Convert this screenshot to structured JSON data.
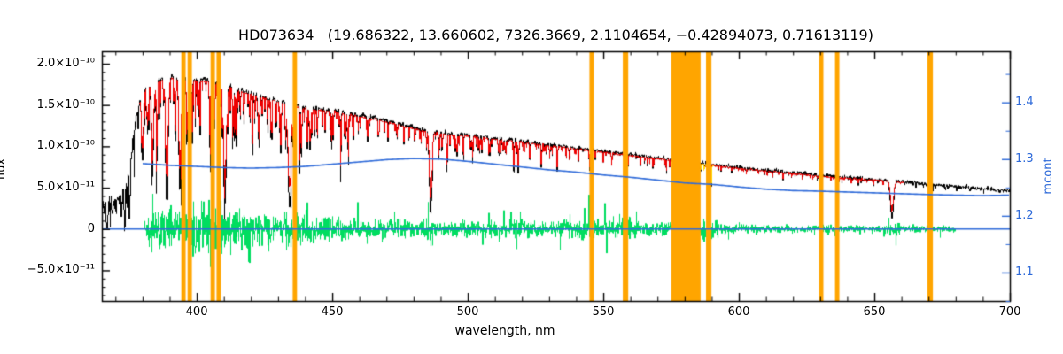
{
  "chart_data": {
    "type": "line",
    "title": "HD073634   (19.686322, 13.660602, 7326.3669, 2.1104654, −0.42894073, 0.71613119)",
    "xlabel": "wavelength, nm",
    "ylabel_left": "flux",
    "ylabel_right": "mcont",
    "xlim": [
      365,
      700
    ],
    "ylim_left_1e10": [
      -0.87,
      2.15
    ],
    "ylim_right": [
      1.05,
      1.49
    ],
    "x_ticks": [
      400,
      450,
      500,
      550,
      600,
      650,
      700
    ],
    "x_minor_step_nm": 10,
    "y_ticks_left": [
      {
        "value": 2.0,
        "label": "2.0×10⁻¹⁰"
      },
      {
        "value": 1.5,
        "label": "1.5×10⁻¹⁰"
      },
      {
        "value": 1.0,
        "label": "1.0×10⁻¹⁰"
      },
      {
        "value": 0.5,
        "label": "5.0×10⁻¹¹"
      },
      {
        "value": 0.0,
        "label": "0"
      },
      {
        "value": -0.5,
        "label": "−5.0×10⁻¹¹"
      }
    ],
    "y_ticks_right": [
      {
        "value": 1.4,
        "label": "1.4"
      },
      {
        "value": 1.3,
        "label": "1.3"
      },
      {
        "value": 1.2,
        "label": "1.2"
      },
      {
        "value": 1.1,
        "label": "1.1"
      }
    ],
    "grid": false,
    "legend": "none",
    "colors": {
      "observed": "#000000",
      "model": "#EE0000",
      "masked_band": "#FFA500",
      "masked_trace": "#FFDD00",
      "mcont": "#2E6AD9",
      "zero_line": "#2E6AD9",
      "residual": "#00DD60",
      "axis": "#000000",
      "background": "#FFFFFF"
    },
    "masked_bands_nm": [
      [
        394.3,
        395.9
      ],
      [
        396.6,
        398.2
      ],
      [
        405.1,
        406.7
      ],
      [
        407.3,
        408.9
      ],
      [
        435.4,
        437.0
      ],
      [
        544.9,
        546.5
      ],
      [
        557.2,
        559.2
      ],
      [
        575.1,
        585.9
      ],
      [
        587.9,
        589.9
      ],
      [
        629.6,
        631.2
      ],
      [
        635.5,
        637.1
      ],
      [
        669.6,
        671.6
      ]
    ],
    "series": {
      "observed_continuum_1e10": [
        [
          365,
          0.33
        ],
        [
          368,
          0.36
        ],
        [
          371,
          0.4
        ],
        [
          373,
          0.44
        ],
        [
          375,
          0.75
        ],
        [
          377,
          1.25
        ],
        [
          379,
          1.6
        ],
        [
          381,
          1.72
        ],
        [
          384,
          1.79
        ],
        [
          387,
          1.83
        ],
        [
          390,
          1.85
        ],
        [
          394,
          1.84
        ],
        [
          398,
          1.82
        ],
        [
          402,
          1.82
        ],
        [
          406,
          1.8
        ],
        [
          410,
          1.77
        ],
        [
          414,
          1.72
        ],
        [
          418,
          1.67
        ],
        [
          422,
          1.63
        ],
        [
          426,
          1.59
        ],
        [
          430,
          1.56
        ],
        [
          434,
          1.52
        ],
        [
          438,
          1.49
        ],
        [
          442,
          1.47
        ],
        [
          446,
          1.45
        ],
        [
          450,
          1.44
        ],
        [
          455,
          1.41
        ],
        [
          460,
          1.38
        ],
        [
          465,
          1.35
        ],
        [
          470,
          1.31
        ],
        [
          475,
          1.27
        ],
        [
          480,
          1.23
        ],
        [
          486,
          1.19
        ],
        [
          492,
          1.16
        ],
        [
          500,
          1.14
        ],
        [
          508,
          1.11
        ],
        [
          516,
          1.08
        ],
        [
          524,
          1.045
        ],
        [
          532,
          1.015
        ],
        [
          540,
          0.98
        ],
        [
          548,
          0.95
        ],
        [
          556,
          0.915
        ],
        [
          564,
          0.885
        ],
        [
          572,
          0.855
        ],
        [
          580,
          0.825
        ],
        [
          588,
          0.79
        ],
        [
          596,
          0.758
        ],
        [
          604,
          0.73
        ],
        [
          612,
          0.705
        ],
        [
          620,
          0.68
        ],
        [
          628,
          0.655
        ],
        [
          636,
          0.632
        ],
        [
          644,
          0.612
        ],
        [
          652,
          0.595
        ],
        [
          660,
          0.572
        ],
        [
          668,
          0.548
        ],
        [
          676,
          0.525
        ],
        [
          684,
          0.503
        ],
        [
          692,
          0.482
        ],
        [
          700,
          0.462
        ]
      ],
      "model_continuum_scale": 0.985,
      "model_line_depth_scale": 0.8,
      "model_range_nm": [
        378.5,
        660.5
      ],
      "masked_trace_range_nm": [
        575.1,
        590.8
      ],
      "mcont_curve": [
        [
          380,
          1.292
        ],
        [
          390,
          1.289
        ],
        [
          400,
          1.287
        ],
        [
          410,
          1.285
        ],
        [
          420,
          1.284
        ],
        [
          430,
          1.285
        ],
        [
          440,
          1.287
        ],
        [
          450,
          1.291
        ],
        [
          460,
          1.295
        ],
        [
          470,
          1.299
        ],
        [
          480,
          1.301
        ],
        [
          490,
          1.3
        ],
        [
          500,
          1.296
        ],
        [
          510,
          1.291
        ],
        [
          520,
          1.286
        ],
        [
          530,
          1.281
        ],
        [
          540,
          1.277
        ],
        [
          550,
          1.272
        ],
        [
          560,
          1.268
        ],
        [
          570,
          1.263
        ],
        [
          580,
          1.258
        ],
        [
          590,
          1.2555
        ],
        [
          600,
          1.251
        ],
        [
          610,
          1.247
        ],
        [
          620,
          1.2445
        ],
        [
          630,
          1.2435
        ],
        [
          640,
          1.242
        ],
        [
          650,
          1.2405
        ],
        [
          660,
          1.239
        ],
        [
          670,
          1.2375
        ],
        [
          680,
          1.2365
        ],
        [
          690,
          1.2355
        ],
        [
          700,
          1.2365
        ]
      ],
      "residual_amplitude_1e10": [
        [
          380,
          0.02
        ],
        [
          382,
          0.09
        ],
        [
          386,
          0.12
        ],
        [
          390,
          0.13
        ],
        [
          394,
          0.14
        ],
        [
          398,
          0.15
        ],
        [
          403,
          0.16
        ],
        [
          408,
          0.16
        ],
        [
          412,
          0.14
        ],
        [
          416,
          0.12
        ],
        [
          420,
          0.1
        ],
        [
          425,
          0.09
        ],
        [
          430,
          0.09
        ],
        [
          435,
          0.1
        ],
        [
          440,
          0.085
        ],
        [
          445,
          0.075
        ],
        [
          450,
          0.07
        ],
        [
          458,
          0.062
        ],
        [
          466,
          0.058
        ],
        [
          474,
          0.053
        ],
        [
          482,
          0.05
        ],
        [
          486,
          0.065
        ],
        [
          490,
          0.05
        ],
        [
          498,
          0.048
        ],
        [
          506,
          0.05
        ],
        [
          514,
          0.052
        ],
        [
          518,
          0.058
        ],
        [
          524,
          0.048
        ],
        [
          532,
          0.045
        ],
        [
          540,
          0.058
        ],
        [
          546,
          0.085
        ],
        [
          552,
          0.05
        ],
        [
          559,
          0.085
        ],
        [
          564,
          0.042
        ],
        [
          570,
          0.038
        ],
        [
          576,
          0.045
        ],
        [
          582,
          0.055
        ],
        [
          589,
          0.075
        ],
        [
          594,
          0.032
        ],
        [
          600,
          0.026
        ],
        [
          608,
          0.023
        ],
        [
          616,
          0.021
        ],
        [
          624,
          0.02
        ],
        [
          630,
          0.028
        ],
        [
          638,
          0.02
        ],
        [
          646,
          0.019
        ],
        [
          652,
          0.02
        ],
        [
          656,
          0.045
        ],
        [
          662,
          0.02
        ],
        [
          670,
          0.024
        ],
        [
          676,
          0.02
        ],
        [
          680,
          0.02
        ]
      ],
      "residual_range_nm": [
        380.5,
        680
      ],
      "zero_line_value": 0
    },
    "absorption_lines": {
      "strong_lines_nm_depth_sigma": [
        [
          379.8,
          0.5,
          0.35
        ],
        [
          383.5,
          0.55,
          0.4
        ],
        [
          388.9,
          0.58,
          0.45
        ],
        [
          393.4,
          0.62,
          0.3
        ],
        [
          396.9,
          0.65,
          0.45
        ],
        [
          410.2,
          0.82,
          0.5
        ],
        [
          434.0,
          0.82,
          0.5
        ],
        [
          486.1,
          0.85,
          0.45
        ],
        [
          656.3,
          0.76,
          0.55
        ],
        [
          381.6,
          0.35,
          0.18
        ],
        [
          385.0,
          0.32,
          0.18
        ],
        [
          392.0,
          0.28,
          0.15
        ],
        [
          400.5,
          0.25,
          0.15
        ],
        [
          404.6,
          0.38,
          0.18
        ],
        [
          406.4,
          0.32,
          0.16
        ],
        [
          407.8,
          0.3,
          0.15
        ],
        [
          413.2,
          0.3,
          0.16
        ],
        [
          414.4,
          0.32,
          0.16
        ],
        [
          417.2,
          0.26,
          0.14
        ],
        [
          420.3,
          0.3,
          0.14
        ],
        [
          422.7,
          0.36,
          0.16
        ],
        [
          426.0,
          0.26,
          0.14
        ],
        [
          427.2,
          0.3,
          0.14
        ],
        [
          430.8,
          0.42,
          0.2
        ],
        [
          432.6,
          0.36,
          0.16
        ],
        [
          438.4,
          0.42,
          0.18
        ],
        [
          440.5,
          0.3,
          0.14
        ],
        [
          441.6,
          0.34,
          0.16
        ],
        [
          444.3,
          0.26,
          0.14
        ],
        [
          447.2,
          0.22,
          0.13
        ],
        [
          449.5,
          0.2,
          0.12
        ],
        [
          452.9,
          0.25,
          0.13
        ],
        [
          455.4,
          0.2,
          0.12
        ],
        [
          459.4,
          0.18,
          0.12
        ],
        [
          462.9,
          0.2,
          0.12
        ],
        [
          466.8,
          0.18,
          0.12
        ],
        [
          470.4,
          0.2,
          0.12
        ],
        [
          473.7,
          0.16,
          0.11
        ],
        [
          476.3,
          0.18,
          0.11
        ],
        [
          480.1,
          0.16,
          0.1
        ],
        [
          489.2,
          0.28,
          0.13
        ],
        [
          492.1,
          0.3,
          0.14
        ],
        [
          495.8,
          0.24,
          0.12
        ],
        [
          498.2,
          0.22,
          0.12
        ],
        [
          501.6,
          0.28,
          0.13
        ],
        [
          504.2,
          0.2,
          0.11
        ],
        [
          508.0,
          0.22,
          0.12
        ],
        [
          511.0,
          0.18,
          0.1
        ],
        [
          513.9,
          0.2,
          0.11
        ],
        [
          516.8,
          0.36,
          0.16
        ],
        [
          518.4,
          0.36,
          0.16
        ],
        [
          522.7,
          0.24,
          0.12
        ],
        [
          526.9,
          0.3,
          0.13
        ],
        [
          530.0,
          0.2,
          0.11
        ],
        [
          532.8,
          0.24,
          0.12
        ],
        [
          537.2,
          0.2,
          0.11
        ],
        [
          540.6,
          0.18,
          0.1
        ],
        [
          544.7,
          0.2,
          0.11
        ],
        [
          549.8,
          0.16,
          0.1
        ],
        [
          552.9,
          0.2,
          0.11
        ],
        [
          558.9,
          0.18,
          0.1
        ],
        [
          563.5,
          0.13,
          0.09
        ],
        [
          568.0,
          0.13,
          0.09
        ],
        [
          573.0,
          0.13,
          0.09
        ],
        [
          578.2,
          0.12,
          0.09
        ],
        [
          582.2,
          0.12,
          0.09
        ],
        [
          585.8,
          0.12,
          0.09
        ],
        [
          589.0,
          0.42,
          0.16
        ],
        [
          589.6,
          0.36,
          0.15
        ],
        [
          593.2,
          0.1,
          0.08
        ],
        [
          597.1,
          0.1,
          0.08
        ],
        [
          602.6,
          0.1,
          0.08
        ],
        [
          607.1,
          0.1,
          0.08
        ],
        [
          610.3,
          0.12,
          0.08
        ],
        [
          612.3,
          0.12,
          0.08
        ],
        [
          616.2,
          0.12,
          0.08
        ],
        [
          619.3,
          0.09,
          0.08
        ],
        [
          623.2,
          0.1,
          0.08
        ],
        [
          627.1,
          0.09,
          0.08
        ],
        [
          630.3,
          0.1,
          0.08
        ],
        [
          633.8,
          0.08,
          0.08
        ],
        [
          637.9,
          0.08,
          0.08
        ],
        [
          641.3,
          0.1,
          0.08
        ],
        [
          643.9,
          0.12,
          0.08
        ],
        [
          649.6,
          0.12,
          0.08
        ],
        [
          653.1,
          0.1,
          0.08
        ],
        [
          661.1,
          0.08,
          0.08
        ],
        [
          665.1,
          0.08,
          0.08
        ],
        [
          667.9,
          0.1,
          0.08
        ],
        [
          672.1,
          0.08,
          0.08
        ],
        [
          676.1,
          0.08,
          0.08
        ],
        [
          680.6,
          0.08,
          0.08
        ],
        [
          685.1,
          0.07,
          0.08
        ],
        [
          690.1,
          0.07,
          0.08
        ],
        [
          695.1,
          0.07,
          0.08
        ]
      ],
      "line_forest": [
        {
          "range": [
            365,
            377
          ],
          "per_nm": 3.0,
          "depth": [
            0.25,
            0.6
          ],
          "sigma": [
            0.05,
            0.12
          ]
        },
        {
          "range": [
            377,
            400
          ],
          "per_nm": 2.0,
          "depth": [
            0.08,
            0.35
          ],
          "sigma": [
            0.04,
            0.1
          ]
        },
        {
          "range": [
            400,
            460
          ],
          "per_nm": 1.6,
          "depth": [
            0.06,
            0.3
          ],
          "sigma": [
            0.04,
            0.1
          ]
        },
        {
          "range": [
            460,
            520
          ],
          "per_nm": 1.0,
          "depth": [
            0.04,
            0.2
          ],
          "sigma": [
            0.04,
            0.09
          ]
        },
        {
          "range": [
            520,
            580
          ],
          "per_nm": 0.7,
          "depth": [
            0.03,
            0.15
          ],
          "sigma": [
            0.04,
            0.08
          ]
        },
        {
          "range": [
            580,
            700
          ],
          "per_nm": 0.45,
          "depth": [
            0.02,
            0.1
          ],
          "sigma": [
            0.04,
            0.08
          ]
        }
      ],
      "seed": 20240607
    },
    "noise": {
      "observed_base_1e10": 0.013,
      "observed_uv_1e10": 0.035,
      "uv_limit_nm": 377.5,
      "model_1e10": 0.007
    }
  }
}
